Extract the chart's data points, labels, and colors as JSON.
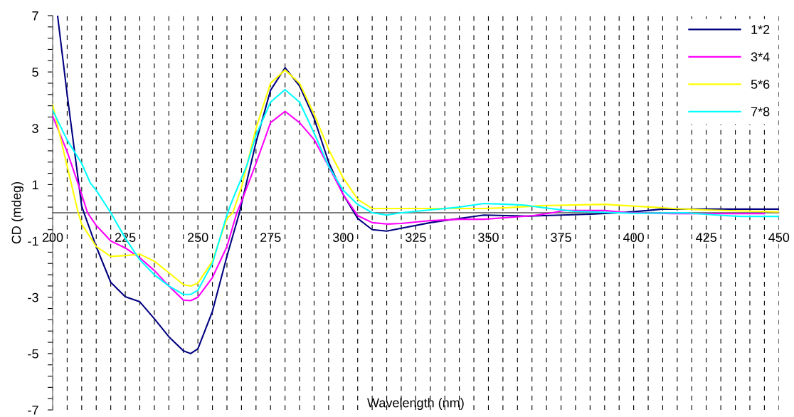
{
  "chart_data": {
    "type": "line",
    "xlabel": "Wavelength (nm)",
    "ylabel": "CD (mdeg)",
    "xlim": [
      200,
      450
    ],
    "ylim": [
      -7,
      7
    ],
    "xticks": [
      200,
      {
        "value": 205,
        "label": null
      },
      {
        "value": 210,
        "label": null
      },
      {
        "value": 215,
        "label": null
      },
      {
        "value": 220,
        "label": null
      },
      225,
      {
        "value": 230,
        "label": null
      },
      {
        "value": 235,
        "label": null
      },
      {
        "value": 240,
        "label": null
      },
      {
        "value": 245,
        "label": null
      },
      250,
      {
        "value": 255,
        "label": null
      },
      {
        "value": 260,
        "label": null
      },
      {
        "value": 265,
        "label": null
      },
      {
        "value": 270,
        "label": null
      },
      275,
      {
        "value": 280,
        "label": null
      },
      {
        "value": 285,
        "label": null
      },
      {
        "value": 290,
        "label": null
      },
      {
        "value": 295,
        "label": null
      },
      300,
      {
        "value": 305,
        "label": null
      },
      {
        "value": 310,
        "label": null
      },
      {
        "value": 315,
        "label": null
      },
      {
        "value": 320,
        "label": null
      },
      325,
      {
        "value": 330,
        "label": null
      },
      {
        "value": 335,
        "label": null
      },
      {
        "value": 340,
        "label": null
      },
      {
        "value": 345,
        "label": null
      },
      350,
      {
        "value": 355,
        "label": null
      },
      {
        "value": 360,
        "label": null
      },
      {
        "value": 365,
        "label": null
      },
      {
        "value": 370,
        "label": null
      },
      375,
      {
        "value": 380,
        "label": null
      },
      {
        "value": 385,
        "label": null
      },
      {
        "value": 390,
        "label": null
      },
      {
        "value": 395,
        "label": null
      },
      400,
      {
        "value": 405,
        "label": null
      },
      {
        "value": 410,
        "label": null
      },
      {
        "value": 415,
        "label": null
      },
      {
        "value": 420,
        "label": null
      },
      425,
      {
        "value": 430,
        "label": null
      },
      {
        "value": 435,
        "label": null
      },
      {
        "value": 440,
        "label": null
      },
      {
        "value": 445,
        "label": null
      },
      450
    ],
    "yticks": [
      -7,
      {
        "value": -6.6,
        "label": null
      },
      {
        "value": -6.2,
        "label": null
      },
      {
        "value": -5.8,
        "label": null
      },
      {
        "value": -5.4,
        "label": null
      },
      -5,
      {
        "value": -4.6,
        "label": null
      },
      {
        "value": -4.2,
        "label": null
      },
      {
        "value": -3.8,
        "label": null
      },
      {
        "value": -3.4,
        "label": null
      },
      -3,
      {
        "value": -2.6,
        "label": null
      },
      {
        "value": -2.2,
        "label": null
      },
      {
        "value": -1.8,
        "label": null
      },
      {
        "value": -1.4,
        "label": null
      },
      -1,
      {
        "value": -0.6,
        "label": null
      },
      {
        "value": -0.2,
        "label": null
      },
      {
        "value": 0.2,
        "label": null
      },
      {
        "value": 0.6,
        "label": null
      },
      1,
      {
        "value": 1.4,
        "label": null
      },
      {
        "value": 1.8,
        "label": null
      },
      {
        "value": 2.2,
        "label": null
      },
      {
        "value": 2.6,
        "label": null
      },
      3,
      {
        "value": 3.4,
        "label": null
      },
      {
        "value": 3.8,
        "label": null
      },
      {
        "value": 4.2,
        "label": null
      },
      {
        "value": 4.6,
        "label": null
      },
      5,
      {
        "value": 5.4,
        "label": null
      },
      {
        "value": 5.8,
        "label": null
      },
      {
        "value": 6.2,
        "label": null
      },
      {
        "value": 6.6,
        "label": null
      },
      7
    ],
    "grid": "x",
    "legend": "top right",
    "marker": "none",
    "line_style": "solid",
    "series": [
      {
        "name": "1*2",
        "color": "#000080",
        "x": [
          201.7,
          205,
          210,
          212,
          215,
          220,
          225,
          230,
          235,
          240,
          245,
          247.5,
          250,
          255,
          260,
          264.3,
          270,
          275,
          280,
          285,
          290,
          295,
          300,
          305,
          310,
          315,
          320,
          330,
          340,
          348.4,
          364,
          368.9,
          385.2,
          395,
          404.8,
          409.7,
          450
        ],
        "values": [
          7,
          4.2,
          0.23,
          -0.35,
          -1.2,
          -2.47,
          -2.98,
          -3.16,
          -3.76,
          -4.4,
          -4.9,
          -5.0,
          -4.83,
          -3.5,
          -1.54,
          0,
          2.5,
          4.35,
          5.15,
          4.5,
          3.35,
          1.8,
          0.65,
          -0.2,
          -0.6,
          -0.65,
          -0.55,
          -0.35,
          -0.2,
          -0.08,
          -0.12,
          -0.1,
          -0.05,
          0,
          0.08,
          0.13,
          0.13
        ]
      },
      {
        "name": "3*4",
        "color": "#ff00ff",
        "x": [
          200,
          205,
          210,
          212,
          215,
          220,
          225,
          230,
          235,
          240,
          245,
          247.5,
          250,
          255,
          260,
          263.4,
          265,
          270,
          275,
          280,
          285,
          290,
          295,
          300,
          305,
          310,
          315,
          320,
          330,
          340,
          348.4,
          359,
          365.5,
          372,
          376,
          390,
          398,
          414,
          445
        ],
        "values": [
          3.43,
          2.17,
          0.65,
          0,
          -0.45,
          -1.0,
          -1.25,
          -1.6,
          -2.05,
          -2.6,
          -3.1,
          -3.12,
          -3.0,
          -2.3,
          -1.2,
          0,
          0.4,
          1.75,
          3.2,
          3.6,
          3.2,
          2.6,
          1.65,
          0.65,
          -0.1,
          -0.35,
          -0.4,
          -0.38,
          -0.28,
          -0.23,
          -0.23,
          -0.15,
          -0.1,
          0,
          0.08,
          0.08,
          0,
          -0.03,
          -0.03
        ]
      },
      {
        "name": "5*6",
        "color": "#ffff00",
        "x": [
          200,
          205,
          208.8,
          210,
          215,
          220,
          225,
          230,
          235,
          240,
          245,
          247.5,
          250,
          255,
          260,
          262,
          265,
          270,
          275,
          280,
          285,
          290,
          295,
          300,
          305,
          310,
          330,
          348.4,
          356.6,
          368,
          390,
          397.8,
          406.4,
          413.7,
          424.3,
          450
        ],
        "values": [
          3.85,
          1.65,
          0,
          -0.4,
          -1.2,
          -1.55,
          -1.52,
          -1.47,
          -1.72,
          -2.13,
          -2.55,
          -2.6,
          -2.5,
          -1.72,
          -0.2,
          0,
          0.9,
          3.0,
          4.6,
          5.07,
          4.6,
          3.5,
          2.25,
          1.24,
          0.48,
          0.15,
          0.15,
          0.15,
          0.18,
          0.25,
          0.3,
          0.25,
          0.2,
          0.15,
          0.1,
          0.03
        ]
      },
      {
        "name": "7*8",
        "color": "#00ffff",
        "x": [
          200,
          205,
          210,
          213,
          215,
          220,
          225,
          230,
          235,
          240,
          245,
          247.5,
          250,
          255,
          260.2,
          262,
          266.8,
          270,
          275,
          280,
          285,
          290,
          295,
          300,
          305,
          310,
          315,
          320,
          330,
          340,
          348.4,
          356.6,
          362.4,
          367.3,
          372.2,
          379.5,
          400,
          418,
          428.6,
          436.8,
          450
        ],
        "values": [
          3.64,
          2.58,
          1.75,
          1.05,
          0.8,
          0,
          -0.9,
          -1.67,
          -2.2,
          -2.6,
          -2.9,
          -2.9,
          -2.75,
          -1.8,
          0,
          0.48,
          1.67,
          2.75,
          3.93,
          4.37,
          3.93,
          2.83,
          1.65,
          0.8,
          0.3,
          0,
          -0.08,
          0,
          0.1,
          0.2,
          0.33,
          0.3,
          0.27,
          0.2,
          0.14,
          0.05,
          -0.02,
          0,
          -0.08,
          -0.13,
          -0.13
        ]
      }
    ]
  }
}
